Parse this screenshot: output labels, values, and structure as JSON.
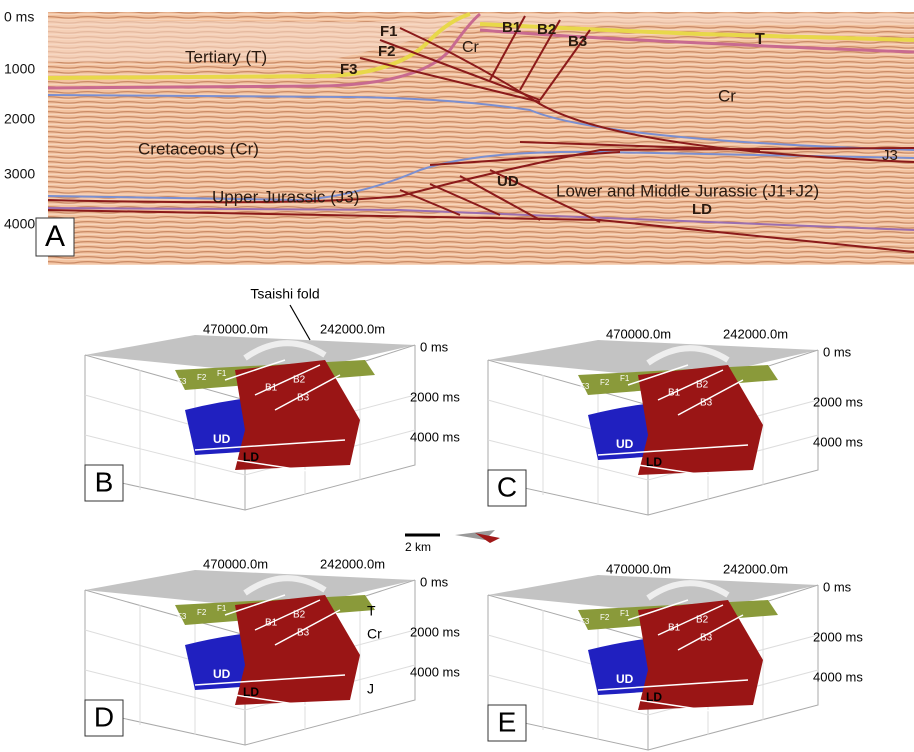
{
  "panel_a": {
    "label": "A",
    "depth_ticks": [
      "0 ms",
      "1000",
      "2000",
      "3000",
      "4000"
    ],
    "annotations": [
      "F1",
      "F2",
      "F3",
      "Cr",
      "B1",
      "B2",
      "B3",
      "T",
      "Tertiary (T)",
      "Cr",
      "Cretaceous (Cr)",
      "J3",
      "UD",
      "Lower and Middle Jurassic (J1+J2)",
      "Upper Jurassic (J3)",
      "LD"
    ]
  },
  "panels": [
    {
      "label": "B",
      "callout": "Tsaishi fold",
      "coords": [
        "470000.0m",
        "242000.0m"
      ],
      "depths": [
        "0 ms",
        "2000 ms",
        "4000 ms"
      ],
      "faults": [
        "F3",
        "F2",
        "F1",
        "B1",
        "B2",
        "B3",
        "UD",
        "LD"
      ]
    },
    {
      "label": "C",
      "coords": [
        "470000.0m",
        "242000.0m"
      ],
      "depths": [
        "0 ms",
        "2000 ms",
        "4000 ms"
      ],
      "faults": [
        "F3",
        "F2",
        "F1",
        "B1",
        "B2",
        "B3",
        "UD",
        "LD"
      ]
    },
    {
      "label": "D",
      "coords": [
        "470000.0m",
        "242000.0m"
      ],
      "depths": [
        "0 ms",
        "2000 ms",
        "4000 ms"
      ],
      "faults": [
        "F3",
        "F2",
        "F1",
        "B1",
        "B2",
        "B3",
        "UD",
        "LD"
      ],
      "units": [
        "T",
        "Cr",
        "J"
      ]
    },
    {
      "label": "E",
      "coords": [
        "470000.0m",
        "242000.0m"
      ],
      "depths": [
        "0 ms",
        "2000 ms",
        "4000 ms"
      ],
      "faults": [
        "F3",
        "F2",
        "F1",
        "B1",
        "B2",
        "B3",
        "UD",
        "LD"
      ]
    }
  ],
  "scale_bar": "2 km"
}
